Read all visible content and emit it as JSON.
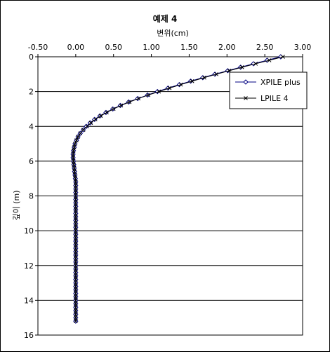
{
  "chart_data": {
    "type": "line",
    "title": "예제 4",
    "xlabel": "변위(cm)",
    "ylabel": "깊이 (m)",
    "x_axis_position": "top",
    "y_axis_inverted": true,
    "xlim": [
      -0.5,
      3.0
    ],
    "ylim": [
      0,
      16
    ],
    "x_ticks": [
      "-0.50",
      "0.00",
      "0.50",
      "1.00",
      "1.50",
      "2.00",
      "2.50",
      "3.00"
    ],
    "y_ticks": [
      "0",
      "2",
      "4",
      "6",
      "8",
      "10",
      "12",
      "14",
      "16"
    ],
    "grid": {
      "horizontal": true,
      "vertical": false
    },
    "legend": {
      "placement": "top-right",
      "entries": [
        "XPILE plus",
        "LPILE 4"
      ]
    },
    "depth": [
      0,
      0.2,
      0.4,
      0.6,
      0.8,
      1.0,
      1.2,
      1.4,
      1.6,
      1.8,
      2.0,
      2.2,
      2.4,
      2.6,
      2.8,
      3.0,
      3.2,
      3.4,
      3.6,
      3.8,
      4.0,
      4.2,
      4.4,
      4.6,
      4.8,
      5.0,
      5.2,
      5.4,
      5.6,
      5.8,
      6.0,
      6.2,
      6.4,
      6.6,
      6.8,
      7.0,
      7.2,
      7.4,
      7.6,
      7.8,
      8.0,
      8.2,
      8.4,
      8.6,
      8.8,
      9.0,
      9.2,
      9.4,
      9.6,
      9.8,
      10.0,
      10.2,
      10.4,
      10.6,
      10.8,
      11.0,
      11.2,
      11.4,
      11.6,
      11.8,
      12.0,
      12.2,
      12.4,
      12.6,
      12.8,
      13.0,
      13.2,
      13.4,
      13.6,
      13.8,
      14.0,
      14.2,
      14.4,
      14.6,
      14.8,
      15.0,
      15.2
    ],
    "series": [
      {
        "name": "XPILE plus",
        "marker": "diamond",
        "color": "#000080",
        "values": [
          2.71,
          2.53,
          2.35,
          2.18,
          2.01,
          1.84,
          1.68,
          1.52,
          1.37,
          1.22,
          1.08,
          0.95,
          0.82,
          0.7,
          0.59,
          0.49,
          0.4,
          0.32,
          0.25,
          0.19,
          0.14,
          0.1,
          0.06,
          0.03,
          0.01,
          -0.01,
          -0.02,
          -0.03,
          -0.035,
          -0.035,
          -0.03,
          -0.025,
          -0.02,
          -0.015,
          -0.01,
          -0.005,
          0.0,
          0.0,
          0.0,
          0.0,
          0.0,
          0.0,
          0.0,
          0.0,
          0.0,
          0.0,
          0.0,
          0.0,
          0.0,
          0.0,
          0.0,
          0.0,
          0.0,
          0.0,
          0.0,
          0.0,
          0.0,
          0.0,
          0.0,
          0.0,
          0.0,
          0.0,
          0.0,
          0.0,
          0.0,
          0.0,
          0.0,
          0.0,
          0.0,
          0.0,
          0.0,
          0.0,
          0.0,
          0.0,
          0.0,
          0.0,
          0.0
        ]
      },
      {
        "name": "LPILE 4",
        "marker": "x",
        "color": "#000000",
        "values": [
          2.74,
          2.56,
          2.38,
          2.2,
          2.03,
          1.86,
          1.7,
          1.54,
          1.39,
          1.24,
          1.1,
          0.96,
          0.83,
          0.71,
          0.6,
          0.5,
          0.41,
          0.33,
          0.26,
          0.2,
          0.15,
          0.1,
          0.06,
          0.03,
          0.01,
          -0.01,
          -0.02,
          -0.03,
          -0.035,
          -0.035,
          -0.03,
          -0.025,
          -0.02,
          -0.015,
          -0.01,
          -0.005,
          0.0,
          0.0,
          0.0,
          0.0,
          0.0,
          0.0,
          0.0,
          0.0,
          0.0,
          0.0,
          0.0,
          0.0,
          0.0,
          0.0,
          0.0,
          0.0,
          0.0,
          0.0,
          0.0,
          0.0,
          0.0,
          0.0,
          0.0,
          0.0,
          0.0,
          0.0,
          0.0,
          0.0,
          0.0,
          0.0,
          0.0,
          0.0,
          0.0,
          0.0,
          0.0,
          0.0,
          0.0,
          0.0,
          0.0,
          0.0,
          0.0
        ]
      }
    ]
  }
}
